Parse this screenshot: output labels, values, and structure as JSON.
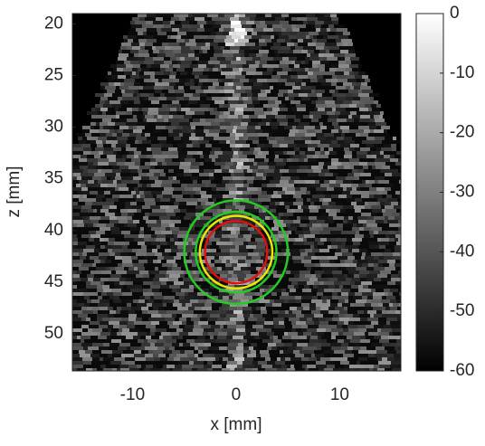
{
  "chart_data": {
    "type": "image",
    "xlabel": "x [mm]",
    "ylabel": "z [mm]",
    "xlim": [
      -15.8,
      15.9
    ],
    "ylim": [
      19,
      53.6
    ],
    "xticks": [
      -10,
      0,
      10
    ],
    "yticks": [
      20,
      25,
      30,
      35,
      40,
      45,
      50
    ],
    "clim": [
      -60,
      0
    ],
    "cticks": [
      0,
      -10,
      -20,
      -30,
      -40,
      -50,
      -60
    ],
    "circles": [
      {
        "color": "#22cc22",
        "cx": 0,
        "cz": 42.1,
        "r": 5.0
      },
      {
        "color": "#22cc22",
        "cx": 0,
        "cz": 42.1,
        "r": 3.9
      },
      {
        "color": "#e8e800",
        "cx": 0,
        "cz": 42.1,
        "r": 3.5
      },
      {
        "color": "#e01010",
        "cx": 0,
        "cz": 42.1,
        "r": 3.0
      }
    ]
  }
}
